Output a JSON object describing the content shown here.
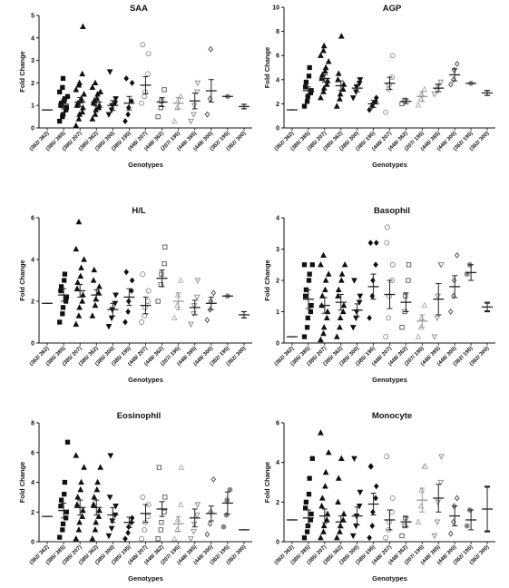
{
  "chart_data": [
    {
      "type": "scatter",
      "title": "SAA",
      "ylabel": "Fold Change",
      "xlabel": "Genotypes",
      "ylim": [
        0,
        5
      ],
      "yticks": [
        0,
        1,
        2,
        3,
        4,
        5
      ],
      "categories": [
        "(362/ 362)",
        "(385/ 385)",
        "(385/ 207)",
        "(385/ 362)",
        "(385/ 300)",
        "(385/ 195)",
        "(448/ 207)",
        "(448/ 362)",
        "(207/ 195)",
        "(448/ 385)",
        "(448/ 300)",
        "(362/ 195)",
        "(362/ 300)"
      ],
      "summary": [
        {
          "mean": 0.8,
          "sem": 0
        },
        {
          "mean": 1.05,
          "sem": 0.2
        },
        {
          "mean": 1.15,
          "sem": 0.2
        },
        {
          "mean": 1.15,
          "sem": 0.18
        },
        {
          "mean": 1.0,
          "sem": 0.22
        },
        {
          "mean": 1.1,
          "sem": 0.3
        },
        {
          "mean": 1.9,
          "sem": 0.38
        },
        {
          "mean": 1.15,
          "sem": 0.2
        },
        {
          "mean": 1.1,
          "sem": 0.25
        },
        {
          "mean": 1.2,
          "sem": 0.35
        },
        {
          "mean": 1.65,
          "sem": 0.5
        },
        {
          "mean": 1.4,
          "sem": 0
        },
        {
          "mean": 0.95,
          "sem": 0.1
        }
      ],
      "points": [
        [
          0.8
        ],
        [
          0.3,
          0.5,
          0.6,
          0.8,
          0.9,
          1.0,
          1.1,
          1.2,
          1.3,
          1.4,
          1.6,
          1.8,
          2.2
        ],
        [
          0.1,
          0.4,
          0.6,
          0.7,
          0.9,
          1.0,
          1.1,
          1.2,
          1.3,
          1.5,
          1.7,
          1.9,
          2.0,
          2.4,
          4.5
        ],
        [
          0.4,
          0.6,
          0.8,
          0.9,
          1.0,
          1.1,
          1.2,
          1.3,
          1.5,
          1.6,
          1.8,
          2.0
        ],
        [
          0.6,
          0.8,
          1.0,
          1.1,
          1.3,
          2.5
        ],
        [
          0.3,
          0.6,
          0.9,
          1.2,
          2.0,
          2.2
        ],
        [
          1.1,
          1.4,
          1.6,
          2.4,
          3.3,
          3.7
        ],
        [
          0.5,
          0.9,
          1.2,
          1.7
        ],
        [
          0.3,
          0.9,
          1.2,
          1.4
        ],
        [
          0.3,
          0.6,
          1.0,
          1.6,
          2.0
        ],
        [
          0.6,
          1.3,
          3.5
        ],
        [
          1.4
        ],
        [
          0.85,
          1.05
        ]
      ]
    },
    {
      "type": "scatter",
      "title": "AGP",
      "ylabel": "Fold Change",
      "xlabel": "Genotypes",
      "ylim": [
        0,
        10
      ],
      "yticks": [
        0,
        2,
        4,
        6,
        8,
        10
      ],
      "categories": [
        "(362/ 362)",
        "(385/ 385)",
        "(385/ 207)",
        "(385/ 362)",
        "(385/ 300)",
        "(385/ 195)",
        "(448/ 207)",
        "(448/ 362)",
        "(207/ 195)",
        "(448/ 385)",
        "(448/ 300)",
        "(362/ 195)",
        "(362/ 300)"
      ],
      "summary": [
        {
          "mean": 1.5,
          "sem": 0
        },
        {
          "mean": 3.1,
          "sem": 0.3
        },
        {
          "mean": 4.1,
          "sem": 0.3
        },
        {
          "mean": 3.5,
          "sem": 0.4
        },
        {
          "mean": 3.3,
          "sem": 0.3
        },
        {
          "mean": 2.0,
          "sem": 0.3
        },
        {
          "mean": 3.7,
          "sem": 0.5
        },
        {
          "mean": 2.2,
          "sem": 0.2
        },
        {
          "mean": 2.6,
          "sem": 0.4
        },
        {
          "mean": 3.3,
          "sem": 0.3
        },
        {
          "mean": 4.4,
          "sem": 0.5
        },
        {
          "mean": 3.7,
          "sem": 0
        },
        {
          "mean": 2.9,
          "sem": 0.2
        }
      ],
      "points": [
        [
          1.5
        ],
        [
          1.8,
          2.2,
          2.6,
          2.9,
          3.1,
          3.4,
          3.8,
          4.3,
          5.0
        ],
        [
          2.5,
          3.0,
          3.3,
          3.6,
          3.9,
          4.1,
          4.4,
          4.7,
          5.0,
          5.5,
          6.0,
          6.4,
          6.8
        ],
        [
          1.8,
          2.4,
          2.8,
          3.2,
          3.6,
          4.0,
          4.5,
          7.6
        ],
        [
          2.5,
          3.0,
          3.4,
          3.7,
          4.0
        ],
        [
          1.5,
          1.8,
          2.0,
          2.2,
          2.5
        ],
        [
          1.3,
          3.2,
          3.6,
          4.2,
          6.0
        ],
        [
          2.0,
          2.3
        ],
        [
          1.9,
          2.4,
          2.8,
          3.2
        ],
        [
          2.8,
          3.1,
          3.5,
          3.8
        ],
        [
          3.6,
          4.0,
          4.8,
          5.3
        ],
        [
          3.7
        ],
        [
          2.7,
          3.1
        ]
      ]
    },
    {
      "type": "scatter",
      "title": "H/L",
      "ylabel": "Fold Change",
      "xlabel": "Genotypes",
      "ylim": [
        0,
        6
      ],
      "yticks": [
        0,
        2,
        4,
        6
      ],
      "categories": [
        "(362/ 362)",
        "(385/ 385)",
        "(385/ 207)",
        "(385/ 362)",
        "(385/ 300)",
        "(385/ 195)",
        "(448/ 207)",
        "(448/ 362)",
        "(207/ 195)",
        "(448/ 385)",
        "(448/ 300)",
        "(362/ 195)",
        "(362/ 300)"
      ],
      "summary": [
        {
          "mean": 1.9,
          "sem": 0
        },
        {
          "mean": 2.3,
          "sem": 0.3
        },
        {
          "mean": 2.5,
          "sem": 0.3
        },
        {
          "mean": 2.3,
          "sem": 0.25
        },
        {
          "mean": 1.6,
          "sem": 0.3
        },
        {
          "mean": 2.2,
          "sem": 0.4
        },
        {
          "mean": 1.8,
          "sem": 0.4
        },
        {
          "mean": 3.1,
          "sem": 0.4
        },
        {
          "mean": 2.0,
          "sem": 0.4
        },
        {
          "mean": 1.7,
          "sem": 0.35
        },
        {
          "mean": 1.9,
          "sem": 0.3
        },
        {
          "mean": 2.25,
          "sem": 0
        },
        {
          "mean": 1.35,
          "sem": 0.15
        }
      ],
      "points": [
        [
          1.9
        ],
        [
          1.0,
          1.4,
          1.7,
          2.0,
          2.2,
          2.5,
          2.7,
          3.0,
          3.3
        ],
        [
          0.9,
          1.3,
          1.7,
          2.0,
          2.3,
          2.6,
          2.9,
          3.2,
          3.6,
          4.0,
          4.5,
          5.8
        ],
        [
          1.3,
          1.8,
          2.1,
          2.4,
          2.7,
          3.0,
          3.5
        ],
        [
          0.8,
          1.2,
          1.6,
          1.9,
          2.3
        ],
        [
          1.0,
          1.5,
          2.0,
          2.5,
          3.0,
          3.4
        ],
        [
          1.0,
          1.3,
          1.7,
          2.0,
          2.5,
          3.3
        ],
        [
          2.0,
          2.8,
          3.3,
          3.8,
          4.6
        ],
        [
          1.2,
          1.8,
          2.3,
          3.0
        ],
        [
          0.9,
          1.4,
          1.8,
          2.2,
          3.0
        ],
        [
          1.1,
          1.6,
          2.0,
          2.4
        ],
        [
          2.25
        ],
        [
          1.2,
          1.5
        ]
      ]
    },
    {
      "type": "scatter",
      "title": "Basophil",
      "ylabel": "Fold Change",
      "xlabel": "Genotypes",
      "ylim": [
        0,
        4
      ],
      "yticks": [
        0,
        1,
        2,
        3,
        4
      ],
      "categories": [
        "(362/ 362)",
        "(385/ 385)",
        "(385/ 207)",
        "(385/ 362)",
        "(385/ 300)",
        "(385/ 195)",
        "(448/ 207)",
        "(448/ 362)",
        "(207/ 195)",
        "(448/ 385)",
        "(448/ 300)",
        "(362/ 195)",
        "(362/ 300)"
      ],
      "summary": [
        {
          "mean": 0.2,
          "sem": 0
        },
        {
          "mean": 1.4,
          "sem": 0.3
        },
        {
          "mean": 1.2,
          "sem": 0.25
        },
        {
          "mean": 1.3,
          "sem": 0.25
        },
        {
          "mean": 1.05,
          "sem": 0.2
        },
        {
          "mean": 1.8,
          "sem": 0.4
        },
        {
          "mean": 1.55,
          "sem": 0.45
        },
        {
          "mean": 1.3,
          "sem": 0.3
        },
        {
          "mean": 0.7,
          "sem": 0.2
        },
        {
          "mean": 1.4,
          "sem": 0.5
        },
        {
          "mean": 1.8,
          "sem": 0.35
        },
        {
          "mean": 2.25,
          "sem": 0.25
        },
        {
          "mean": 1.15,
          "sem": 0.12
        }
      ],
      "points": [
        [
          0.2
        ],
        [
          0.2,
          0.5,
          0.8,
          1.0,
          1.2,
          1.5,
          1.7,
          2.0,
          2.2,
          2.5,
          2.5
        ],
        [
          0.1,
          0.3,
          0.5,
          0.8,
          1.0,
          1.2,
          1.5,
          1.7,
          2.0,
          2.2,
          2.5,
          2.8
        ],
        [
          0.2,
          0.5,
          0.8,
          1.0,
          1.2,
          1.5,
          1.7,
          2.0,
          2.2,
          2.5
        ],
        [
          0.5,
          0.8,
          1.0,
          1.3,
          1.5,
          2.0
        ],
        [
          0.8,
          1.5,
          2.0,
          2.5,
          3.2,
          3.2
        ],
        [
          0.2,
          0.8,
          1.5,
          2.0,
          2.5,
          3.2,
          3.7
        ],
        [
          0.5,
          1.0,
          1.5,
          2.0,
          2.5
        ],
        [
          0.2,
          0.5,
          0.8,
          1.2
        ],
        [
          0.2,
          0.8,
          1.5,
          2.5,
          2.5
        ],
        [
          1.0,
          1.5,
          2.0,
          2.8
        ],
        [
          2.2,
          2.5
        ],
        [
          1.0,
          1.3
        ]
      ]
    },
    {
      "type": "scatter",
      "title": "Eosinophil",
      "ylabel": "Fold Change",
      "xlabel": "Genotypes",
      "ylim": [
        0,
        8
      ],
      "yticks": [
        0,
        2,
        4,
        6,
        8
      ],
      "categories": [
        "(362/ 362)",
        "(385/ 385)",
        "(385/ 207)",
        "(385/ 362)",
        "(385/ 300)",
        "(385/ 195)",
        "(448/ 207)",
        "(448/ 362)",
        "(207/ 195)",
        "(448/ 385)",
        "(448/ 300)",
        "(362/ 195)",
        "(362/ 300)"
      ],
      "summary": [
        {
          "mean": 1.7,
          "sem": 0
        },
        {
          "mean": 2.1,
          "sem": 0.5
        },
        {
          "mean": 2.3,
          "sem": 0.5
        },
        {
          "mean": 2.3,
          "sem": 0.5
        },
        {
          "mean": 1.8,
          "sem": 0.5
        },
        {
          "mean": 1.3,
          "sem": 0.35
        },
        {
          "mean": 1.9,
          "sem": 0.6
        },
        {
          "mean": 2.2,
          "sem": 0.5
        },
        {
          "mean": 1.2,
          "sem": 0.5
        },
        {
          "mean": 1.6,
          "sem": 0.6
        },
        {
          "mean": 1.9,
          "sem": 0.5
        },
        {
          "mean": 2.6,
          "sem": 0.75
        },
        {
          "mean": 0.8,
          "sem": 0
        }
      ],
      "points": [
        [
          1.7
        ],
        [
          0.3,
          0.8,
          1.2,
          1.6,
          2.0,
          2.4,
          2.8,
          3.2,
          4.0,
          6.7
        ],
        [
          0.2,
          0.8,
          1.3,
          1.7,
          2.1,
          2.5,
          3.0,
          3.5,
          4.0,
          5.0,
          5.8
        ],
        [
          0.2,
          0.8,
          1.3,
          1.7,
          2.1,
          2.5,
          3.0,
          3.5,
          4.0,
          5.0
        ],
        [
          0.4,
          0.9,
          1.4,
          1.8,
          2.4,
          3.0,
          5.8
        ],
        [
          0.2,
          0.6,
          1.0,
          1.3,
          1.6
        ],
        [
          0.2,
          0.8,
          1.3,
          1.7,
          2.5,
          3.0
        ],
        [
          0.2,
          0.8,
          1.3,
          2.0,
          3.0,
          5.0
        ],
        [
          0.2,
          0.8,
          1.5,
          2.5,
          5.0
        ],
        [
          0.2,
          0.7,
          1.2,
          1.8,
          2.5
        ],
        [
          0.5,
          1.2,
          2.0,
          4.2
        ],
        [
          1.0,
          1.8,
          2.8,
          3.5
        ],
        [
          0.8
        ]
      ]
    },
    {
      "type": "scatter",
      "title": "Monocyte",
      "ylabel": "Fold Change",
      "xlabel": "Genotypes",
      "ylim": [
        0,
        6
      ],
      "yticks": [
        0,
        2,
        4,
        6
      ],
      "categories": [
        "(362/ 362)",
        "(385/ 385)",
        "(385/ 207)",
        "(385/ 362)",
        "(385/ 300)",
        "(385/ 195)",
        "(448/ 207)",
        "(448/ 362)",
        "(207/ 195)",
        "(448/ 385)",
        "(448/ 300)",
        "(362/ 195)",
        "(362/ 300)"
      ],
      "summary": [
        {
          "mean": 1.1,
          "sem": 0
        },
        {
          "mean": 1.2,
          "sem": 0.4
        },
        {
          "mean": 1.3,
          "sem": 0.35
        },
        {
          "mean": 1.0,
          "sem": 0.3
        },
        {
          "mean": 1.3,
          "sem": 0.45
        },
        {
          "mean": 1.9,
          "sem": 0.55
        },
        {
          "mean": 1.1,
          "sem": 0.5
        },
        {
          "mean": 1.0,
          "sem": 0.25
        },
        {
          "mean": 2.1,
          "sem": 0.6
        },
        {
          "mean": 2.2,
          "sem": 0.7
        },
        {
          "mean": 1.3,
          "sem": 0.5
        },
        {
          "mean": 1.1,
          "sem": 0.5
        },
        {
          "mean": 1.65,
          "sem": 1.1
        }
      ],
      "points": [
        [
          1.1
        ],
        [
          0.2,
          0.5,
          0.8,
          1.1,
          1.4,
          1.7,
          2.0,
          2.4,
          3.2,
          4.2
        ],
        [
          0.2,
          0.5,
          0.8,
          1.1,
          1.4,
          1.8,
          2.2,
          2.8,
          3.5,
          4.5,
          5.5
        ],
        [
          0.2,
          0.5,
          0.8,
          1.1,
          1.4,
          2.0,
          3.2,
          4.2
        ],
        [
          0.3,
          0.8,
          1.3,
          1.8,
          2.5,
          4.2
        ],
        [
          0.2,
          0.8,
          1.5,
          2.2,
          2.8,
          3.8,
          3.8
        ],
        [
          0.2,
          0.6,
          1.0,
          1.5,
          2.2,
          4.3
        ],
        [
          0.3,
          0.8,
          1.2
        ],
        [
          1.0,
          1.8,
          2.6,
          3.8,
          3.8
        ],
        [
          0.3,
          1.0,
          2.0,
          3.0,
          4.3
        ],
        [
          0.4,
          1.0,
          1.8,
          2.2
        ],
        [
          0.8,
          1.6
        ],
        [
          0.5,
          2.8
        ]
      ]
    }
  ]
}
